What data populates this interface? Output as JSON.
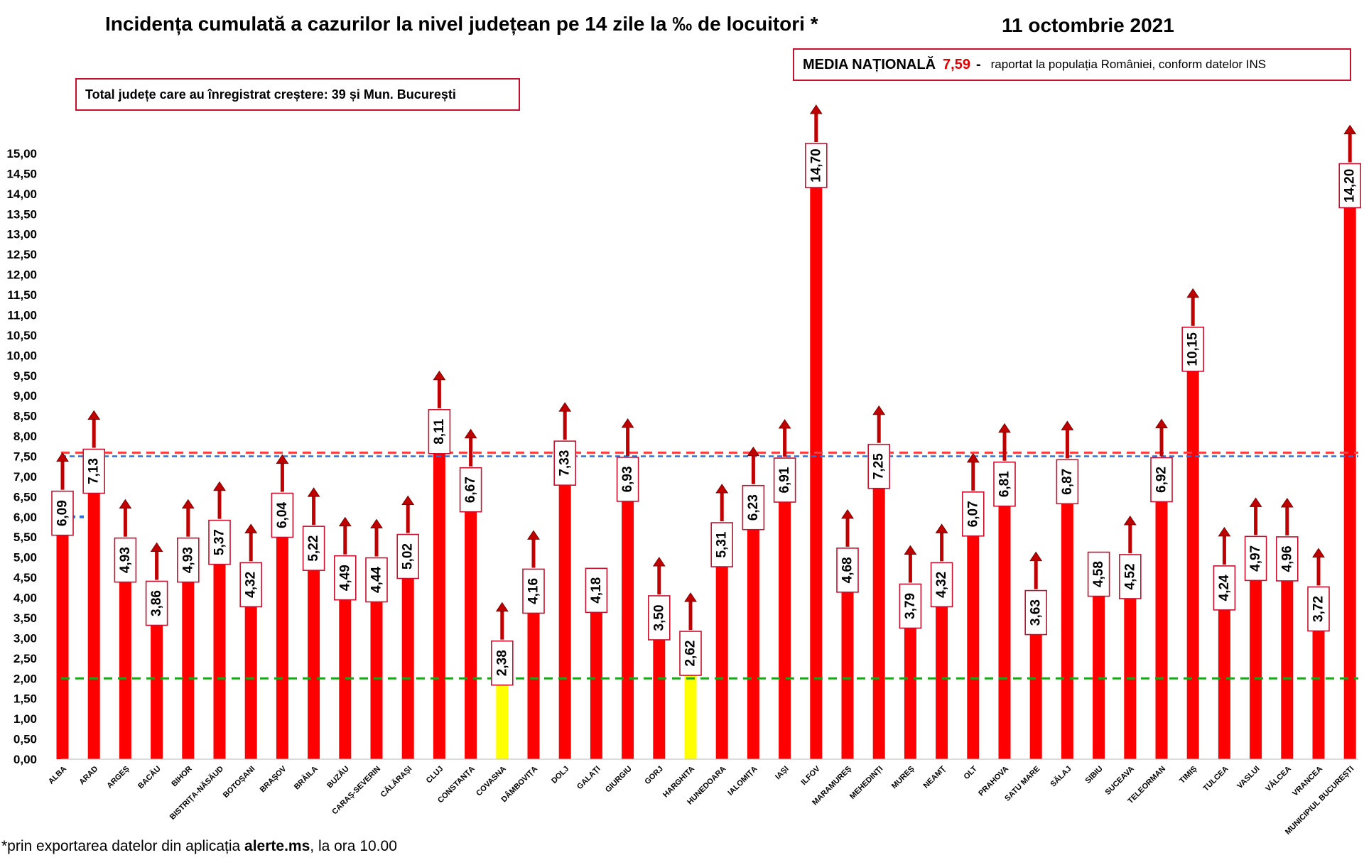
{
  "header": {
    "title": "Incidența cumulată a cazurilor la nivel județean pe 14 zile la ‰ de locuitori *",
    "date": "11 octombrie 2021"
  },
  "media_box": {
    "label": "MEDIA NAȚIONALĂ",
    "value": "7,59",
    "dash": "-",
    "rest": "raportat la populația României, conform datelor INS"
  },
  "total_box": {
    "text": "Total județe care au înregistrat creștere:  39 și Mun. București"
  },
  "footnote": {
    "prefix": "*prin exportarea datelor din aplicația ",
    "bold": "alerte.ms",
    "suffix": ", la ora 10.00"
  },
  "colors": {
    "bar": "#ff0000",
    "bar_low": "#ffff00",
    "arrow": "#c00000",
    "label_border": "#c8102e",
    "ref_red": "#ff3b3b",
    "ref_blue": "#2f6fd6",
    "ref_green": "#1aa51a"
  },
  "chart_data": {
    "type": "bar",
    "categories": [
      "ALBA",
      "ARAD",
      "ARGEȘ",
      "BACĂU",
      "BIHOR",
      "BISTRIȚA-NĂSĂUD",
      "BOTOȘANI",
      "BRAȘOV",
      "BRĂILA",
      "BUZĂU",
      "CARAȘ-SEVERIN",
      "CĂLĂRAȘI",
      "CLUJ",
      "CONSTANȚA",
      "COVASNA",
      "DÂMBOVIȚA",
      "DOLJ",
      "GALAȚI",
      "GIURGIU",
      "GORJ",
      "HARGHITA",
      "HUNEDOARA",
      "IALOMIȚA",
      "IAȘI",
      "ILFOV",
      "MARAMUREȘ",
      "MEHEDINȚI",
      "MUREȘ",
      "NEAMȚ",
      "OLT",
      "PRAHOVA",
      "SATU MARE",
      "SĂLAJ",
      "SIBIU",
      "SUCEAVA",
      "TELEORMAN",
      "TIMIȘ",
      "TULCEA",
      "VASLUI",
      "VÂLCEA",
      "VRANCEA",
      "MUNICIPIUL BUCUREȘTI"
    ],
    "values": [
      6.09,
      7.13,
      4.93,
      3.86,
      4.93,
      5.37,
      4.32,
      6.04,
      5.22,
      4.49,
      4.44,
      5.02,
      8.11,
      6.67,
      2.38,
      4.16,
      7.33,
      4.18,
      6.93,
      3.5,
      2.62,
      5.31,
      6.23,
      6.91,
      14.7,
      4.68,
      7.25,
      3.79,
      4.32,
      6.07,
      6.81,
      3.63,
      6.87,
      4.58,
      4.52,
      6.92,
      10.15,
      4.24,
      4.97,
      4.96,
      3.72,
      14.2
    ],
    "value_labels": [
      "6,09",
      "7,13",
      "4,93",
      "3,86",
      "4,93",
      "5,37",
      "4,32",
      "6,04",
      "5,22",
      "4,49",
      "4,44",
      "5,02",
      "8,11",
      "6,67",
      "2,38",
      "4,16",
      "7,33",
      "4,18",
      "6,93",
      "3,50",
      "2,62",
      "5,31",
      "6,23",
      "6,91",
      "14,70",
      "4,68",
      "7,25",
      "3,79",
      "4,32",
      "6,07",
      "6,81",
      "3,63",
      "6,87",
      "4,58",
      "4,52",
      "6,92",
      "10,15",
      "4,24",
      "4,97",
      "4,96",
      "3,72",
      "14,20"
    ],
    "increase": [
      true,
      true,
      true,
      true,
      true,
      true,
      true,
      true,
      true,
      true,
      true,
      true,
      true,
      true,
      true,
      true,
      true,
      false,
      true,
      true,
      true,
      true,
      true,
      true,
      true,
      true,
      true,
      true,
      true,
      true,
      true,
      true,
      true,
      false,
      true,
      true,
      true,
      true,
      true,
      true,
      true,
      true
    ],
    "ylim": [
      0,
      15
    ],
    "ytick_step": 0.5,
    "ytick_labels": [
      "0,00",
      "0,50",
      "1,00",
      "1,50",
      "2,00",
      "2,50",
      "3,00",
      "3,50",
      "4,00",
      "4,50",
      "5,00",
      "5,50",
      "6,00",
      "6,50",
      "7,00",
      "7,50",
      "8,00",
      "8,50",
      "9,00",
      "9,50",
      "10,00",
      "10,50",
      "11,00",
      "11,50",
      "12,00",
      "12,50",
      "13,00",
      "13,50",
      "14,00",
      "14,50",
      "15,00"
    ],
    "reference_lines": [
      {
        "value": 7.59,
        "color": "red",
        "style": "dashed"
      },
      {
        "value": 7.5,
        "color": "blue",
        "style": "dashed"
      },
      {
        "value": 2.0,
        "color": "green",
        "style": "dashed"
      }
    ],
    "low_threshold": 3.0,
    "alba_marker": 6.0,
    "grid": false,
    "legend": "none"
  }
}
